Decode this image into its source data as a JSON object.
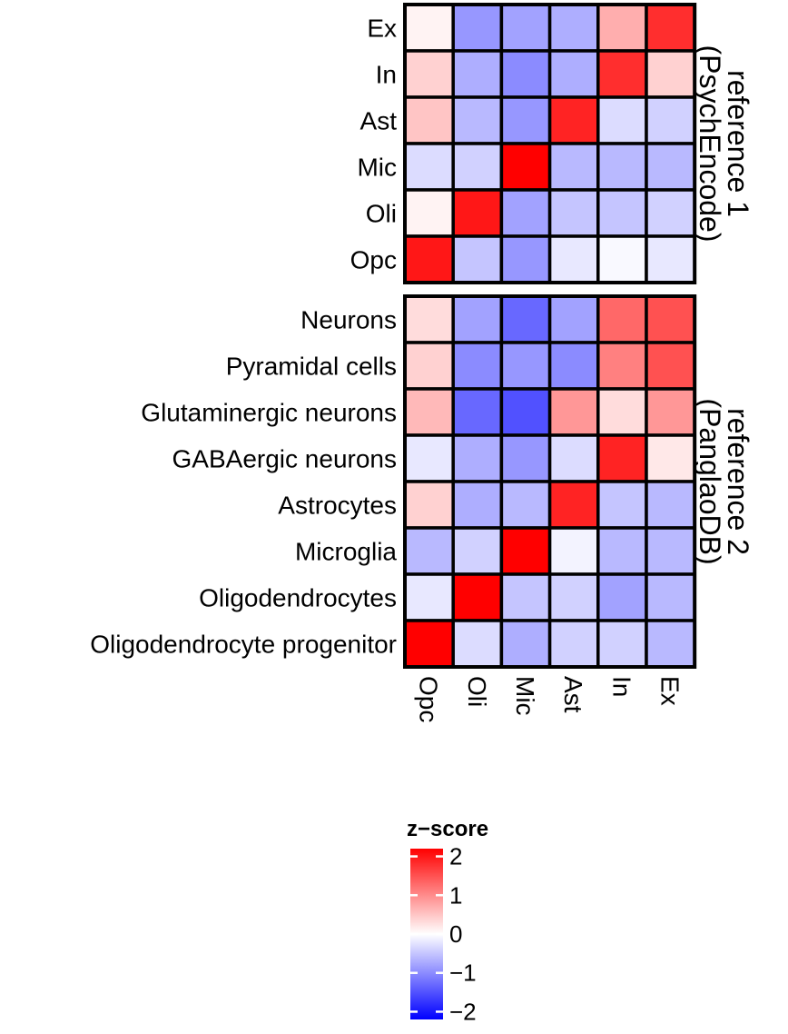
{
  "chart_data": {
    "type": "heatmap",
    "title": "",
    "columns": [
      "Opc",
      "Oli",
      "Mic",
      "Ast",
      "In",
      "Ex"
    ],
    "panels": [
      {
        "strip_label_line1": "reference 1",
        "strip_label_line2": "(PsychEncode)",
        "rows": [
          "Ex",
          "In",
          "Ast",
          "Mic",
          "Oli",
          "Opc"
        ],
        "values": [
          [
            0.1,
            -0.9,
            -0.8,
            -0.7,
            0.7,
            1.8
          ],
          [
            0.4,
            -0.7,
            -1.0,
            -0.7,
            1.8,
            0.4
          ],
          [
            0.5,
            -0.6,
            -0.9,
            1.9,
            -0.3,
            -0.4
          ],
          [
            -0.3,
            -0.4,
            2.2,
            -0.6,
            -0.6,
            -0.6
          ],
          [
            0.1,
            2.0,
            -0.8,
            -0.5,
            -0.5,
            -0.4
          ],
          [
            2.0,
            -0.5,
            -0.9,
            -0.2,
            -0.05,
            -0.2
          ]
        ]
      },
      {
        "strip_label_line1": "reference 2",
        "strip_label_line2": "(PanglaoDB)",
        "rows": [
          "Neurons",
          "Pyramidal cells",
          "Glutaminergic neurons",
          "GABAergic neurons",
          "Astrocytes",
          "Microglia",
          "Oligodendrocytes",
          "Oligodendrocyte progenitor"
        ],
        "values": [
          [
            0.3,
            -0.8,
            -1.3,
            -0.8,
            1.3,
            1.5
          ],
          [
            0.4,
            -1.0,
            -0.9,
            -1.0,
            1.1,
            1.5
          ],
          [
            0.6,
            -1.3,
            -1.5,
            0.9,
            0.3,
            0.9
          ],
          [
            -0.2,
            -0.7,
            -0.9,
            -0.3,
            1.9,
            0.2
          ],
          [
            0.4,
            -0.7,
            -0.6,
            1.9,
            -0.5,
            -0.6
          ],
          [
            -0.6,
            -0.4,
            2.2,
            -0.1,
            -0.6,
            -0.6
          ],
          [
            -0.2,
            2.2,
            -0.5,
            -0.4,
            -0.8,
            -0.6
          ],
          [
            2.2,
            -0.3,
            -0.7,
            -0.4,
            -0.4,
            -0.6
          ]
        ]
      }
    ],
    "legend": {
      "title": "z−score",
      "ticks": [
        2,
        1,
        0,
        -1,
        -2
      ],
      "tick_labels": [
        "2",
        "1",
        "0",
        "−1",
        "−2"
      ],
      "range": [
        -2.2,
        2.2
      ],
      "low_color": "#0000ff",
      "mid_color": "#ffffff",
      "high_color": "#ff0000",
      "placement": "bottom"
    }
  }
}
